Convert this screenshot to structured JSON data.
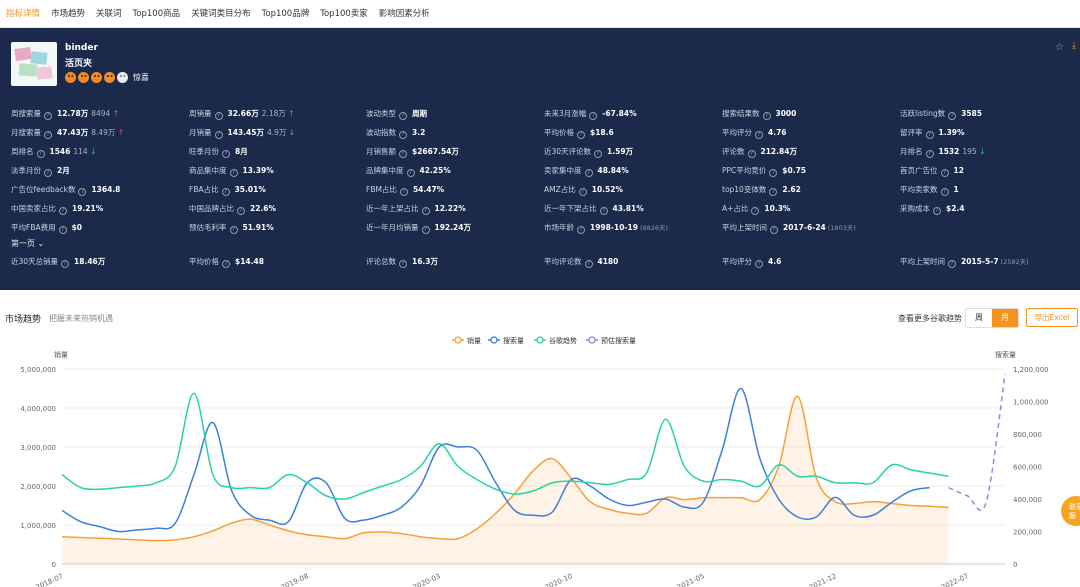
{
  "tabs": [
    "指标详情",
    "市场趋势",
    "关联词",
    "Top100商品",
    "关键词类目分布",
    "Top100品牌",
    "Top100卖家",
    "影响因素分析"
  ],
  "product": {
    "name": "binder",
    "subtitle": "活页夹",
    "rating_label": "惊喜"
  },
  "metrics": [
    [
      {
        "label": "周搜索量",
        "value": "12.78万",
        "delta": "8494",
        "dir": "up"
      },
      {
        "label": "周销量",
        "value": "32.66万",
        "delta": "2.18万",
        "dir": "up"
      },
      {
        "label": "波动类型",
        "value": "周期"
      },
      {
        "label": "未来3月涨幅",
        "value": "-67.84%"
      },
      {
        "label": "搜索结果数",
        "value": "3000"
      },
      {
        "label": "活跃listing数",
        "value": "3585"
      }
    ],
    [
      {
        "label": "月搜索量",
        "value": "47.43万",
        "delta": "8.49万",
        "dir": "up"
      },
      {
        "label": "月销量",
        "value": "143.45万",
        "delta": "4.9万",
        "dir": "down"
      },
      {
        "label": "波动指数",
        "value": "3.2"
      },
      {
        "label": "平均价格",
        "value": "$18.6"
      },
      {
        "label": "平均评分",
        "value": "4.76"
      },
      {
        "label": "留评率",
        "value": "1.39%"
      }
    ],
    [
      {
        "label": "周排名",
        "value": "1546",
        "delta": "114",
        "dir": "down"
      },
      {
        "label": "旺季月份",
        "value": "8月"
      },
      {
        "label": "月销售额",
        "value": "$2667.54万"
      },
      {
        "label": "近30天评论数",
        "value": "1.59万"
      },
      {
        "label": "评论数",
        "value": "212.84万"
      },
      {
        "label": "月排名",
        "value": "1532",
        "delta": "195",
        "dir": "down"
      }
    ],
    [
      {
        "label": "淡季月份",
        "value": "2月"
      },
      {
        "label": "商品集中度",
        "value": "13.39%"
      },
      {
        "label": "品牌集中度",
        "value": "42.25%"
      },
      {
        "label": "卖家集中度",
        "value": "48.84%"
      },
      {
        "label": "PPC平均竞价",
        "value": "$0.75"
      },
      {
        "label": "首页广告位",
        "value": "12"
      }
    ],
    [
      {
        "label": "广告位feedback数",
        "value": "1364.8"
      },
      {
        "label": "FBA占比",
        "value": "35.01%"
      },
      {
        "label": "FBM占比",
        "value": "54.47%"
      },
      {
        "label": "AMZ占比",
        "value": "10.52%"
      },
      {
        "label": "top10变体数",
        "value": "2.62"
      },
      {
        "label": "平均卖家数",
        "value": "1"
      }
    ],
    [
      {
        "label": "中国卖家占比",
        "value": "19.21%"
      },
      {
        "label": "中国品牌占比",
        "value": "22.6%"
      },
      {
        "label": "近一年上架占比",
        "value": "12.22%"
      },
      {
        "label": "近一年下架占比",
        "value": "43.81%"
      },
      {
        "label": "A+占比",
        "value": "10.3%"
      },
      {
        "label": "采购成本",
        "value": "$2.4"
      }
    ],
    [
      {
        "label": "平均FBA费用",
        "value": "$0"
      },
      {
        "label": "预估毛利率",
        "value": "51.91%"
      },
      {
        "label": "近一年月均销量",
        "value": "192.24万"
      },
      {
        "label": "市场年龄",
        "value": "1998-10-19",
        "note": "(8826天)"
      },
      {
        "label": "平均上架时间",
        "value": "2017-6-24",
        "note": "(1803天)"
      }
    ]
  ],
  "first_page_label": "第一页",
  "first_page_metrics": [
    {
      "label": "近30天总销量",
      "value": "18.46万"
    },
    {
      "label": "平均价格",
      "value": "$14.48"
    },
    {
      "label": "评论总数",
      "value": "16.3万"
    },
    {
      "label": "平均评论数",
      "value": "4180"
    },
    {
      "label": "平均评分",
      "value": "4.6"
    },
    {
      "label": "平均上架时间",
      "value": "2015-5-7",
      "note": "(2582天)"
    }
  ],
  "chart_section": {
    "title": "市场趋势",
    "subtitle": "把握未来热销机遇",
    "more_label": "查看更多谷歌趋势",
    "toggle": [
      "周",
      "月"
    ],
    "toggle_selected": "月",
    "export_label": "导出Excel",
    "float_label": "联系客服"
  },
  "colors": {
    "sales": "#f7a035",
    "search": "#3d7fd9",
    "google": "#27d3a5",
    "forecast": "#7f93d6",
    "accent": "#f7941d",
    "panel": "#1b2a4a"
  },
  "chart_data": {
    "type": "line",
    "title": "",
    "ylabel_left": "销量",
    "ylabel_right": "搜索量",
    "ylim_left": [
      0,
      5000000
    ],
    "ylim_right": [
      0,
      1200000
    ],
    "yticks_left": [
      "0",
      "1,000,000",
      "2,000,000",
      "3,000,000",
      "4,000,000",
      "5,000,000"
    ],
    "yticks_right": [
      "0",
      "200,000",
      "400,000",
      "600,000",
      "800,000",
      "1,000,000",
      "1,200,000"
    ],
    "x_tick_labels": [
      "2018-07",
      "2019-08",
      "2020-03",
      "2020-10",
      "2021-05",
      "2021-12",
      "2022-07"
    ],
    "x": [
      "2018-07",
      "2018-08",
      "2018-09",
      "2018-10",
      "2018-11",
      "2018-12",
      "2019-01",
      "2019-02",
      "2019-03",
      "2019-04",
      "2019-05",
      "2019-06",
      "2019-07",
      "2019-08",
      "2019-09",
      "2019-10",
      "2019-11",
      "2019-12",
      "2020-01",
      "2020-02",
      "2020-03",
      "2020-04",
      "2020-05",
      "2020-06",
      "2020-07",
      "2020-08",
      "2020-09",
      "2020-10",
      "2020-11",
      "2020-12",
      "2021-01",
      "2021-02",
      "2021-03",
      "2021-04",
      "2021-05",
      "2021-06",
      "2021-07",
      "2021-08",
      "2021-09",
      "2021-10",
      "2021-11",
      "2021-12",
      "2022-01",
      "2022-02",
      "2022-03",
      "2022-04",
      "2022-05",
      "2022-06",
      "2022-07",
      "2022-08",
      "2022-09"
    ],
    "series": [
      {
        "name": "销量",
        "axis": "left",
        "fill": true,
        "values": [
          700000,
          680000,
          660000,
          640000,
          620000,
          600000,
          620000,
          700000,
          850000,
          1050000,
          1150000,
          1000000,
          850000,
          750000,
          700000,
          650000,
          800000,
          820000,
          780000,
          700000,
          650000,
          650000,
          900000,
          1300000,
          1800000,
          2400000,
          2700000,
          2200000,
          1600000,
          1400000,
          1300000,
          1300000,
          1700000,
          1650000,
          1700000,
          1700000,
          1700000,
          1650000,
          2500000,
          4300000,
          2200000,
          1600000,
          1550000,
          1600000,
          1550000,
          1500000,
          1480000,
          1450000,
          null,
          null,
          null
        ]
      },
      {
        "name": "搜索量",
        "axis": "right",
        "values": [
          330000,
          260000,
          230000,
          200000,
          210000,
          220000,
          250000,
          550000,
          870000,
          450000,
          300000,
          270000,
          260000,
          500000,
          500000,
          280000,
          270000,
          300000,
          350000,
          480000,
          720000,
          720000,
          700000,
          500000,
          330000,
          300000,
          320000,
          520000,
          480000,
          400000,
          360000,
          380000,
          400000,
          350000,
          380000,
          700000,
          1080000,
          650000,
          400000,
          290000,
          290000,
          410000,
          300000,
          300000,
          380000,
          450000,
          470000,
          null,
          null,
          null,
          null
        ]
      },
      {
        "name": "谷歌趋势",
        "axis": "right",
        "values": [
          550000,
          470000,
          460000,
          470000,
          480000,
          500000,
          600000,
          1050000,
          550000,
          470000,
          470000,
          470000,
          550000,
          500000,
          420000,
          400000,
          440000,
          480000,
          520000,
          600000,
          740000,
          600000,
          520000,
          460000,
          430000,
          450000,
          500000,
          510000,
          500000,
          490000,
          520000,
          560000,
          890000,
          600000,
          510000,
          520000,
          510000,
          480000,
          610000,
          540000,
          540000,
          500000,
          500000,
          500000,
          610000,
          580000,
          560000,
          540000,
          null,
          null,
          null
        ]
      },
      {
        "name": "预估搜索量",
        "axis": "right",
        "dashed": true,
        "values": [
          null,
          null,
          null,
          null,
          null,
          null,
          null,
          null,
          null,
          null,
          null,
          null,
          null,
          null,
          null,
          null,
          null,
          null,
          null,
          null,
          null,
          null,
          null,
          null,
          null,
          null,
          null,
          null,
          null,
          null,
          null,
          null,
          null,
          null,
          null,
          null,
          null,
          null,
          null,
          null,
          null,
          null,
          null,
          null,
          null,
          null,
          null,
          470000,
          420000,
          380000,
          1170000
        ]
      }
    ],
    "legend_position": "top-center",
    "grid": true
  }
}
